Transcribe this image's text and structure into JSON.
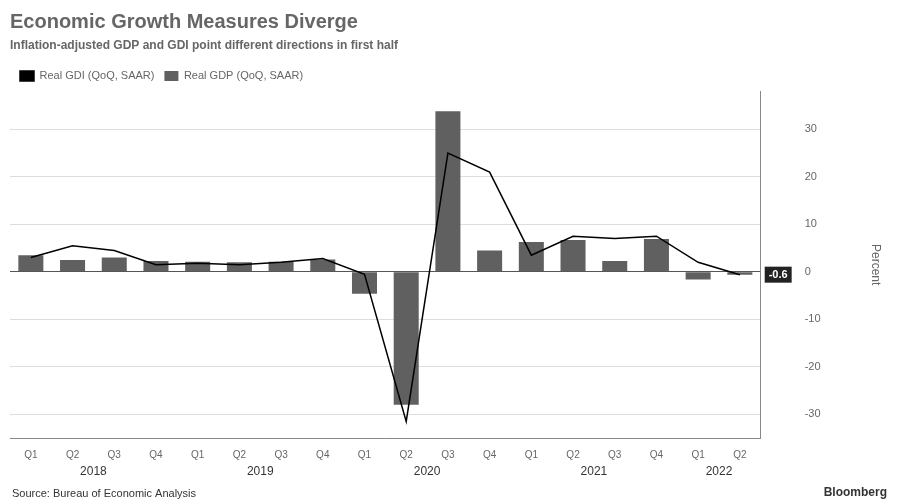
{
  "chart_data": {
    "type": "bar",
    "title": "Economic Growth Measures Diverge",
    "subtitle": "Inflation-adjusted GDP and GDI point different directions in first half",
    "source": "Source: Bureau of Economic Analysis",
    "credit": "Bloomberg",
    "categories": [
      "Q1",
      "Q2",
      "Q3",
      "Q4",
      "Q1",
      "Q2",
      "Q3",
      "Q4",
      "Q1",
      "Q2",
      "Q3",
      "Q4",
      "Q1",
      "Q2",
      "Q3",
      "Q4",
      "Q1",
      "Q2"
    ],
    "year_labels": [
      "2018",
      "2019",
      "2020",
      "2021",
      "2022"
    ],
    "series": [
      {
        "name": "Real GDP (QoQ, SAAR)",
        "type": "bar",
        "color": "#606060",
        "values": [
          3.5,
          2.5,
          3.0,
          2.3,
          2.1,
          2.0,
          2.1,
          2.6,
          -4.6,
          -28.0,
          33.8,
          4.5,
          6.3,
          6.7,
          2.3,
          6.9,
          -1.6,
          -0.6
        ]
      },
      {
        "name": "Real GDI (QoQ, SAAR)",
        "type": "line",
        "color": "#000000",
        "values": [
          3.0,
          5.5,
          4.5,
          1.5,
          1.8,
          1.5,
          2.0,
          2.8,
          -0.5,
          -31.5,
          25.0,
          21.0,
          3.5,
          7.5,
          7.0,
          7.5,
          2.0,
          -0.6
        ]
      }
    ],
    "ylabel": "Percent",
    "ylim": [
      -35,
      38
    ],
    "yticks": [
      -30,
      -20,
      -10,
      0,
      10,
      20,
      30
    ],
    "grid": true,
    "legend": "upper left",
    "annotation": "-0.6"
  }
}
